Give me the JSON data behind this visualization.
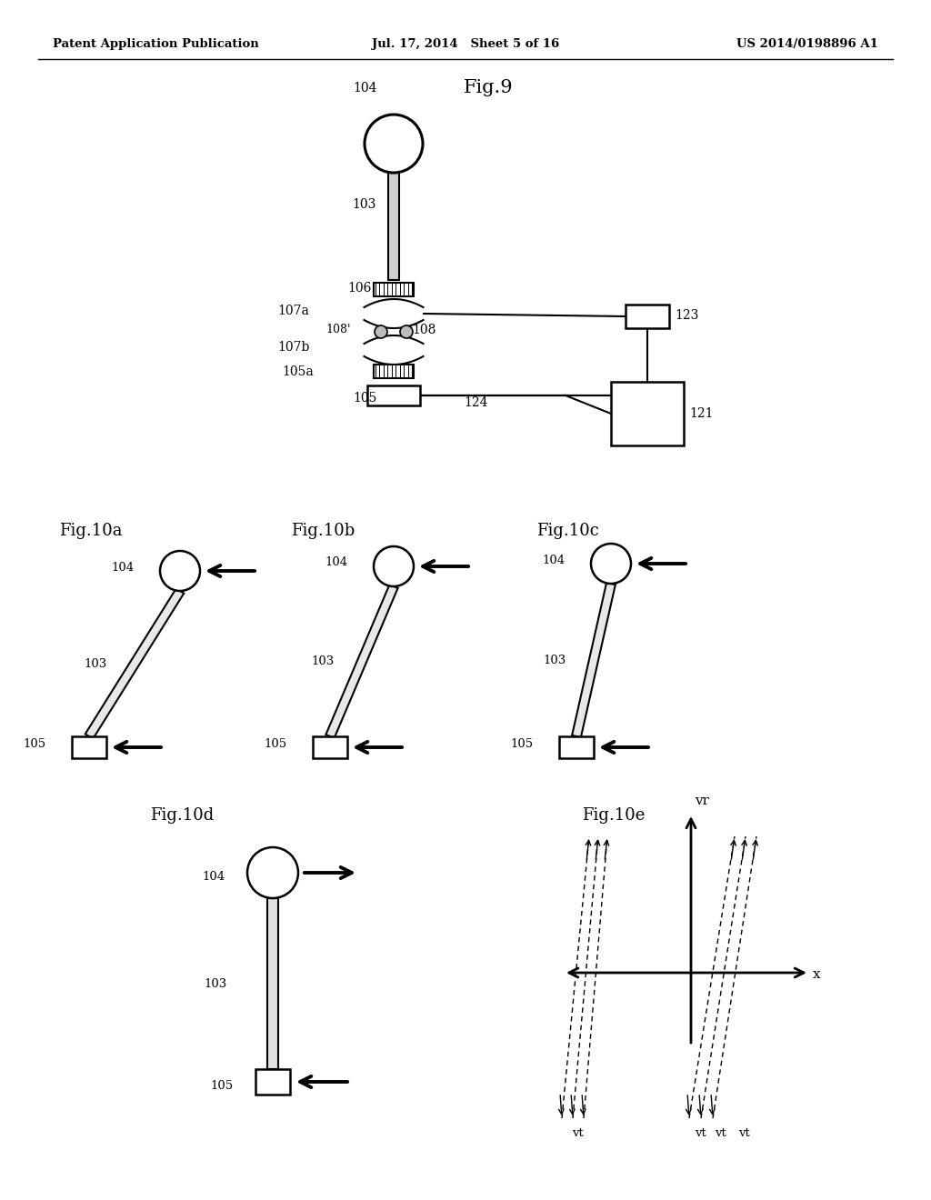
{
  "header_left": "Patent Application Publication",
  "header_center": "Jul. 17, 2014   Sheet 5 of 16",
  "header_right": "US 2014/0198896 A1",
  "bg_color": "#ffffff",
  "lc": "#000000"
}
